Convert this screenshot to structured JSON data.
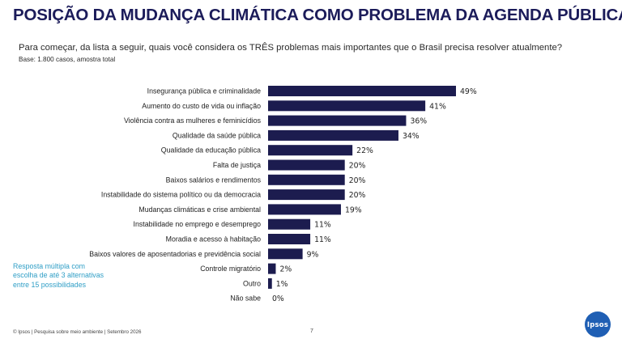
{
  "header": {
    "title": "POSIÇÃO DA MUDANÇA CLIMÁTICA COMO PROBLEMA DA AGENDA PÚBLICA",
    "question": "Para começar, da lista a seguir, quais você considera os TRÊS problemas mais importantes que o Brasil precisa resolver atualmente?",
    "base": "Base: 1.800 casos, amostra total"
  },
  "note": "Resposta múltipla com escolha de até 3 alternativas entre 15 possibilidades",
  "footer": {
    "source": "© Ipsos | Pesquisa sobre meio ambiente | Setembro 2026",
    "page": "7"
  },
  "logo": {
    "text": "Ipsos",
    "color": "#1f5fb4"
  },
  "colors": {
    "bar": "#1c1c4f",
    "title": "#1c1c5a",
    "note": "#2f9ec6"
  },
  "chart_data": {
    "type": "bar",
    "orientation": "horizontal",
    "categories": [
      "Insegurança pública e criminalidade",
      "Aumento do custo de vida ou inflação",
      "Violência contra as mulheres e feminicídios",
      "Qualidade da saúde pública",
      "Qualidade da educação pública",
      "Falta de justiça",
      "Baixos salários e rendimentos",
      "Instabilidade do sistema político ou da democracia",
      "Mudanças climáticas e crise ambiental",
      "Instabilidade no emprego e desemprego",
      "Moradia e acesso à habitação",
      "Baixos valores de aposentadorias e previdência social",
      "Controle migratório",
      "Outro",
      "Não sabe"
    ],
    "values": [
      49,
      41,
      36,
      34,
      22,
      20,
      20,
      20,
      19,
      11,
      11,
      9,
      2,
      1,
      0
    ],
    "value_labels": [
      "49%",
      "41%",
      "36%",
      "34%",
      "22%",
      "20%",
      "20%",
      "20%",
      "19%",
      "11%",
      "11%",
      "9%",
      "2%",
      "1%",
      "0%"
    ],
    "unit": "%",
    "xlim": [
      0,
      49
    ],
    "grid": false,
    "legend": "none"
  }
}
